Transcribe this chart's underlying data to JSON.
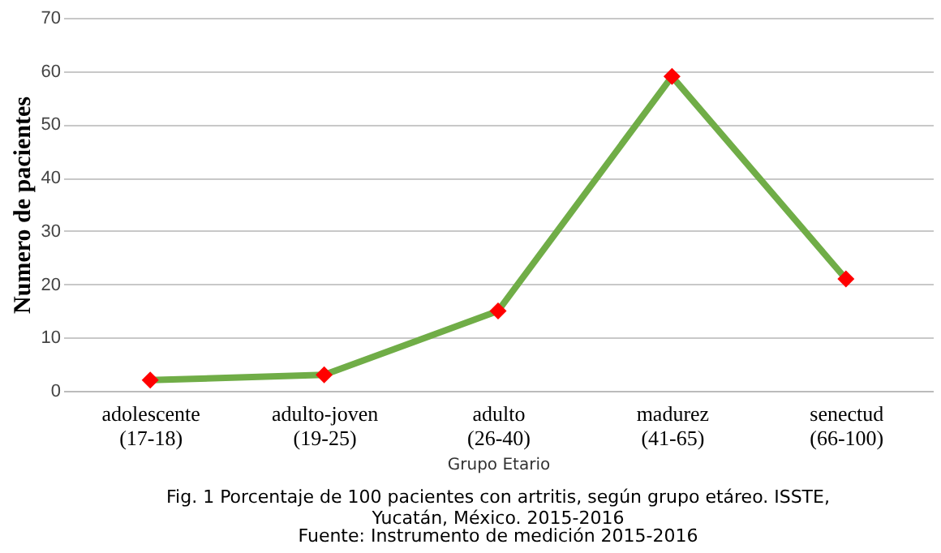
{
  "chart_data": {
    "type": "line",
    "title": "Fig. 1 Porcentaje de 100 pacientes con artritis, según grupo etáreo. ISSTE, Yucatán, México. 2015-2016",
    "annotations": [
      "Fuente: Instrumento de medición 2015-2016"
    ],
    "xlabel": "Grupo Etario",
    "ylabel": "Numero de pacientes",
    "categories": [
      "adolescente (17-18)",
      "adulto-joven (19-25)",
      "adulto (26-40)",
      "madurez (41-65)",
      "senectud (66-100)"
    ],
    "series": [
      {
        "color": "#70ad47",
        "colors": [
          "#ff0000",
          "#ff0000",
          "#ff0000",
          "#ff0000",
          "#ff0000"
        ],
        "values": [
          2,
          3,
          15,
          59,
          21
        ]
      }
    ],
    "ylim": [
      0,
      70
    ],
    "yticks": [
      0,
      10,
      20,
      30,
      40,
      50,
      60,
      70
    ],
    "grid": "y",
    "marker": "diamond",
    "line_style": "solid"
  }
}
